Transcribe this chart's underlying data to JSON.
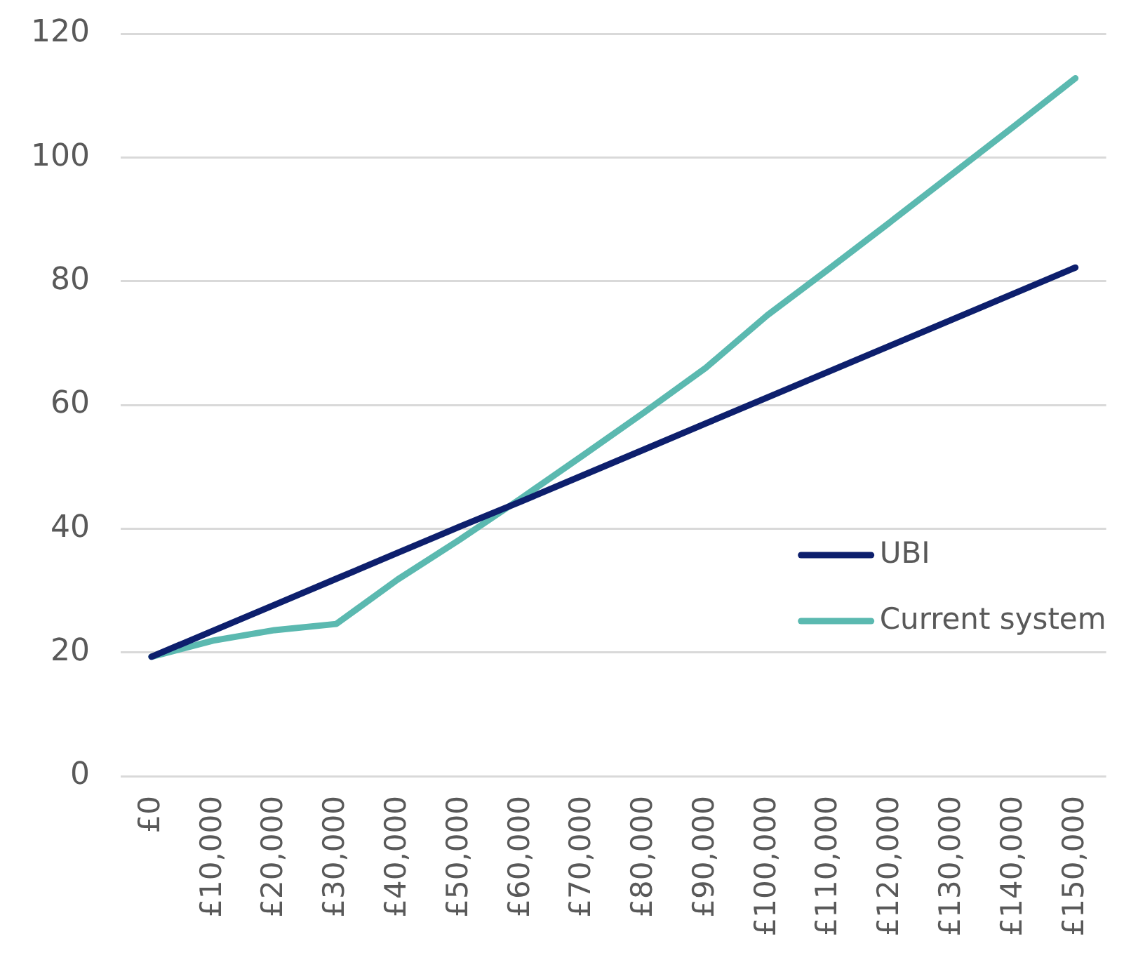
{
  "chart_data": {
    "type": "line",
    "categories": [
      "£0",
      "£10,000",
      "£20,000",
      "£30,000",
      "£40,000",
      "£50,000",
      "£60,000",
      "£70,000",
      "£80,000",
      "£90,000",
      "£100,000",
      "£110,000",
      "£120,000",
      "£130,000",
      "£140,000",
      "£150,000"
    ],
    "ylim": [
      0,
      120
    ],
    "yticks": [
      0,
      20,
      40,
      60,
      80,
      100,
      120
    ],
    "grid": "y",
    "legend": "right",
    "marker": "none",
    "line_style": "solid",
    "series": [
      {
        "name": "UBI",
        "color": "#0d1f6d",
        "values": [
          19.3,
          23.5,
          27.7,
          31.9,
          36.1,
          40.3,
          44.4,
          48.6,
          52.8,
          57.0,
          61.2,
          65.4,
          69.6,
          73.8,
          78.0,
          82.2
        ]
      },
      {
        "name": "Current system",
        "color": "#5bb9b0",
        "values": [
          19.3,
          21.9,
          23.6,
          24.6,
          31.8,
          38.2,
          44.9,
          51.8,
          58.8,
          66.0,
          74.5,
          82.0,
          89.6,
          97.3,
          105.0,
          112.8
        ]
      }
    ]
  }
}
